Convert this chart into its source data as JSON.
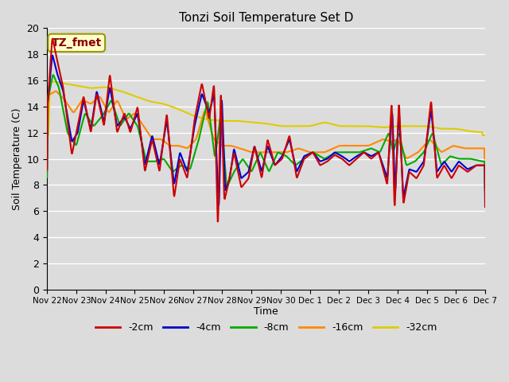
{
  "title": "Tonzi Soil Temperature Set D",
  "ylabel": "Soil Temperature (C)",
  "xlabel": "Time",
  "annotation": "TZ_fmet",
  "ylim": [
    0,
    20
  ],
  "yticks": [
    0,
    2,
    4,
    6,
    8,
    10,
    12,
    14,
    16,
    18,
    20
  ],
  "bg_color": "#dcdcdc",
  "grid_color": "#ffffff",
  "series_colors": {
    "-2cm": "#cc0000",
    "-4cm": "#0000cc",
    "-8cm": "#00aa00",
    "-16cm": "#ff8800",
    "-32cm": "#ddcc00"
  },
  "x_tick_labels": [
    "Nov 22",
    "Nov 23",
    "Nov 24",
    "Nov 25",
    "Nov 26",
    "Nov 27",
    "Nov 28",
    "Nov 29",
    "Nov 30",
    "Dec 1",
    "Dec 2",
    "Dec 3",
    "Dec 4",
    "Dec 5",
    "Dec 6",
    "Dec 7"
  ]
}
